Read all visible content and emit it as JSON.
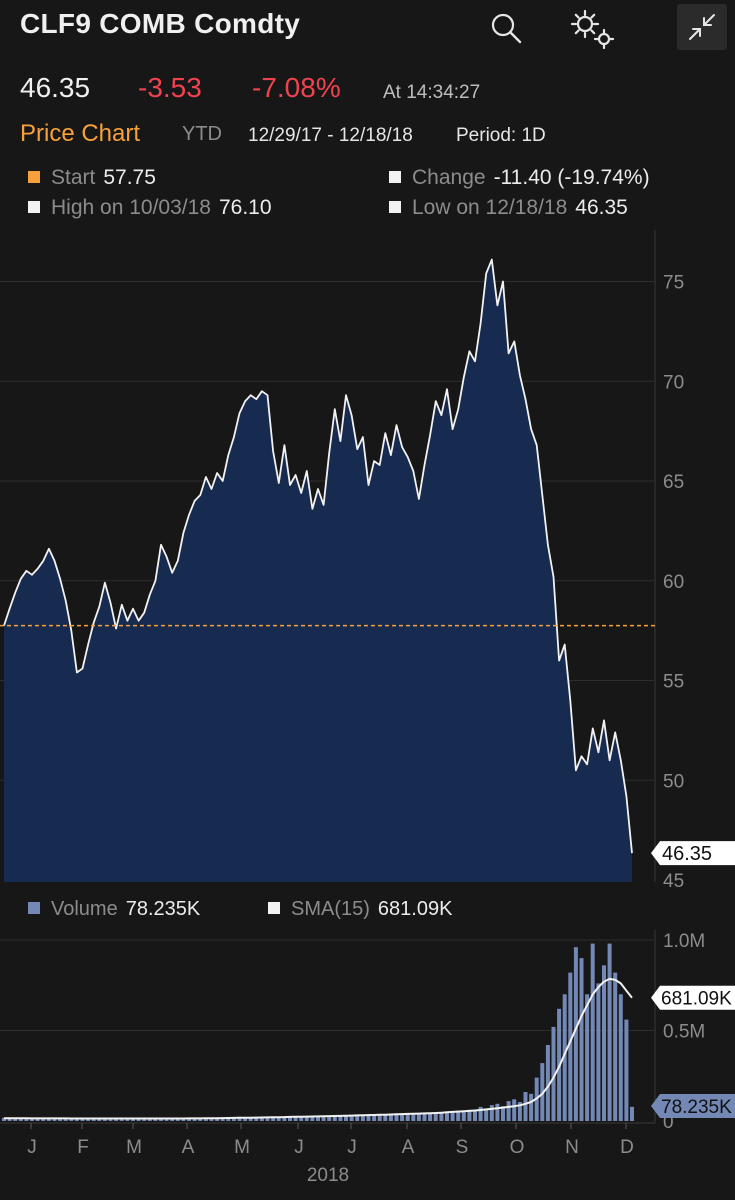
{
  "header": {
    "title": "CLF9 COMB Comdty",
    "icons": [
      "search-icon",
      "gear-icon",
      "collapse-icon"
    ]
  },
  "quote": {
    "last": "46.35",
    "change": "-3.53",
    "change_pct": "-7.08%",
    "time": "At 14:34:27"
  },
  "tabs": {
    "active": "Price Chart",
    "range_label": "YTD",
    "dates": "12/29/17 - 12/18/18",
    "period": "Period: 1D"
  },
  "stats": {
    "start_label": "Start",
    "start_value": "57.75",
    "change_label": "Change",
    "change_value": "-11.40 (-19.74%)",
    "high_label": "High on 10/03/18",
    "high_value": "76.10",
    "low_label": "Low on 12/18/18",
    "low_value": "46.35"
  },
  "volume_legend": {
    "volume_label": "Volume",
    "volume_value": "78.235K",
    "sma_label": "SMA(15)",
    "sma_value": "681.09K"
  },
  "colors": {
    "background": "#171717",
    "area_fill": "#172a4f",
    "line": "#f2f2f2",
    "start_line": "#f6a13c",
    "negative": "#f0424f",
    "volume_bar": "#7388b5",
    "grid": "#2e2e2e"
  },
  "chart_data": [
    {
      "type": "area",
      "title": "",
      "ylim": [
        45,
        77
      ],
      "yticks": [
        45,
        50,
        55,
        60,
        65,
        70,
        75
      ],
      "start_value": 57.75,
      "last_value_label": "46.35",
      "grid": true,
      "series": [
        {
          "values": [
            57.75,
            58.6,
            59.4,
            60.1,
            60.5,
            60.3,
            60.6,
            61.0,
            61.6,
            61.0,
            60.1,
            59.0,
            57.5,
            55.4,
            55.6,
            56.8,
            57.9,
            58.7,
            59.9,
            58.9,
            57.6,
            58.8,
            58.0,
            58.6,
            58.0,
            58.4,
            59.3,
            60.0,
            61.8,
            61.2,
            60.4,
            61.0,
            62.4,
            63.3,
            64.0,
            64.3,
            65.2,
            64.6,
            65.4,
            65.0,
            66.3,
            67.2,
            68.4,
            69.0,
            69.3,
            69.1,
            69.5,
            69.3,
            66.5,
            64.9,
            66.8,
            64.8,
            65.3,
            64.4,
            65.5,
            63.6,
            64.6,
            63.8,
            66.4,
            68.6,
            67.0,
            69.3,
            68.3,
            66.6,
            67.2,
            64.8,
            66.0,
            65.8,
            67.4,
            66.3,
            67.8,
            66.7,
            66.2,
            65.5,
            64.1,
            65.8,
            67.3,
            69.0,
            68.3,
            69.6,
            67.6,
            68.6,
            70.2,
            71.5,
            71.0,
            72.9,
            75.4,
            76.1,
            73.8,
            75.0,
            71.4,
            72.0,
            70.3,
            69.1,
            67.6,
            66.8,
            64.3,
            61.8,
            60.2,
            56.0,
            56.8,
            54.0,
            50.5,
            51.2,
            50.8,
            52.6,
            51.4,
            53.0,
            51.0,
            52.4,
            51.0,
            49.2,
            46.35
          ]
        }
      ]
    },
    {
      "type": "bar",
      "title": "",
      "x_ticks": [
        "J",
        "F",
        "M",
        "A",
        "M",
        "J",
        "J",
        "A",
        "S",
        "O",
        "N",
        "D"
      ],
      "x_year_label": "2018",
      "ylim": [
        0,
        1050000
      ],
      "y_tick_labels": [
        "0",
        "0.5M",
        "1.0M"
      ],
      "y_tick_values": [
        0,
        500000,
        1000000
      ],
      "series": [
        {
          "name": "Volume",
          "values": [
            18000,
            15000,
            12000,
            16000,
            14000,
            18000,
            12000,
            15000,
            13000,
            12000,
            15000,
            13000,
            14000,
            12000,
            16000,
            14000,
            13000,
            15000,
            12000,
            14000,
            13000,
            11000,
            13000,
            15000,
            12000,
            14000,
            13000,
            15000,
            14000,
            13000,
            12000,
            16000,
            15000,
            14000,
            13000,
            16000,
            15000,
            18000,
            16000,
            20000,
            18000,
            22000,
            24000,
            21000,
            19000,
            22000,
            24000,
            20000,
            23000,
            25000,
            22000,
            24000,
            26000,
            23000,
            25000,
            28000,
            26000,
            30000,
            28000,
            32000,
            31000,
            29000,
            34000,
            35000,
            32000,
            38000,
            36000,
            34000,
            37000,
            40000,
            38000,
            42000,
            40000,
            41000,
            45000,
            42000,
            44000,
            40000,
            46000,
            52000,
            48000,
            58000,
            54000,
            62000,
            60000,
            78000,
            68000,
            88000,
            95000,
            82000,
            110000,
            120000,
            105000,
            160000,
            150000,
            240000,
            320000,
            420000,
            520000,
            620000,
            700000,
            820000,
            960000,
            900000,
            700000,
            980000,
            760000,
            860000,
            980000,
            820000,
            700000,
            560000,
            78235
          ]
        },
        {
          "name": "SMA(15)",
          "values": [
            15000,
            15000,
            15000,
            14800,
            14800,
            14600,
            14600,
            14500,
            14400,
            14300,
            14200,
            14100,
            14000,
            13900,
            13800,
            13800,
            13800,
            13800,
            13800,
            13700,
            13700,
            13700,
            13600,
            13600,
            13600,
            13600,
            13600,
            13700,
            13700,
            13700,
            13800,
            13900,
            14000,
            14200,
            14400,
            14600,
            14900,
            15200,
            15600,
            16000,
            16500,
            17000,
            17500,
            18000,
            18500,
            19000,
            19500,
            20000,
            20600,
            21200,
            21800,
            22400,
            23000,
            23600,
            24200,
            24800,
            25400,
            26000,
            26800,
            27600,
            28400,
            29200,
            30000,
            30800,
            31600,
            32400,
            33200,
            34000,
            35000,
            36000,
            37000,
            38000,
            39000,
            40000,
            41000,
            42000,
            43000,
            44000,
            46000,
            48000,
            50000,
            52000,
            54000,
            56000,
            58000,
            61000,
            64000,
            67000,
            70000,
            74000,
            78000,
            82000,
            87000,
            95000,
            105000,
            125000,
            150000,
            190000,
            240000,
            300000,
            370000,
            440000,
            510000,
            580000,
            640000,
            700000,
            740000,
            770000,
            785000,
            780000,
            760000,
            720000,
            681090
          ]
        }
      ]
    }
  ]
}
